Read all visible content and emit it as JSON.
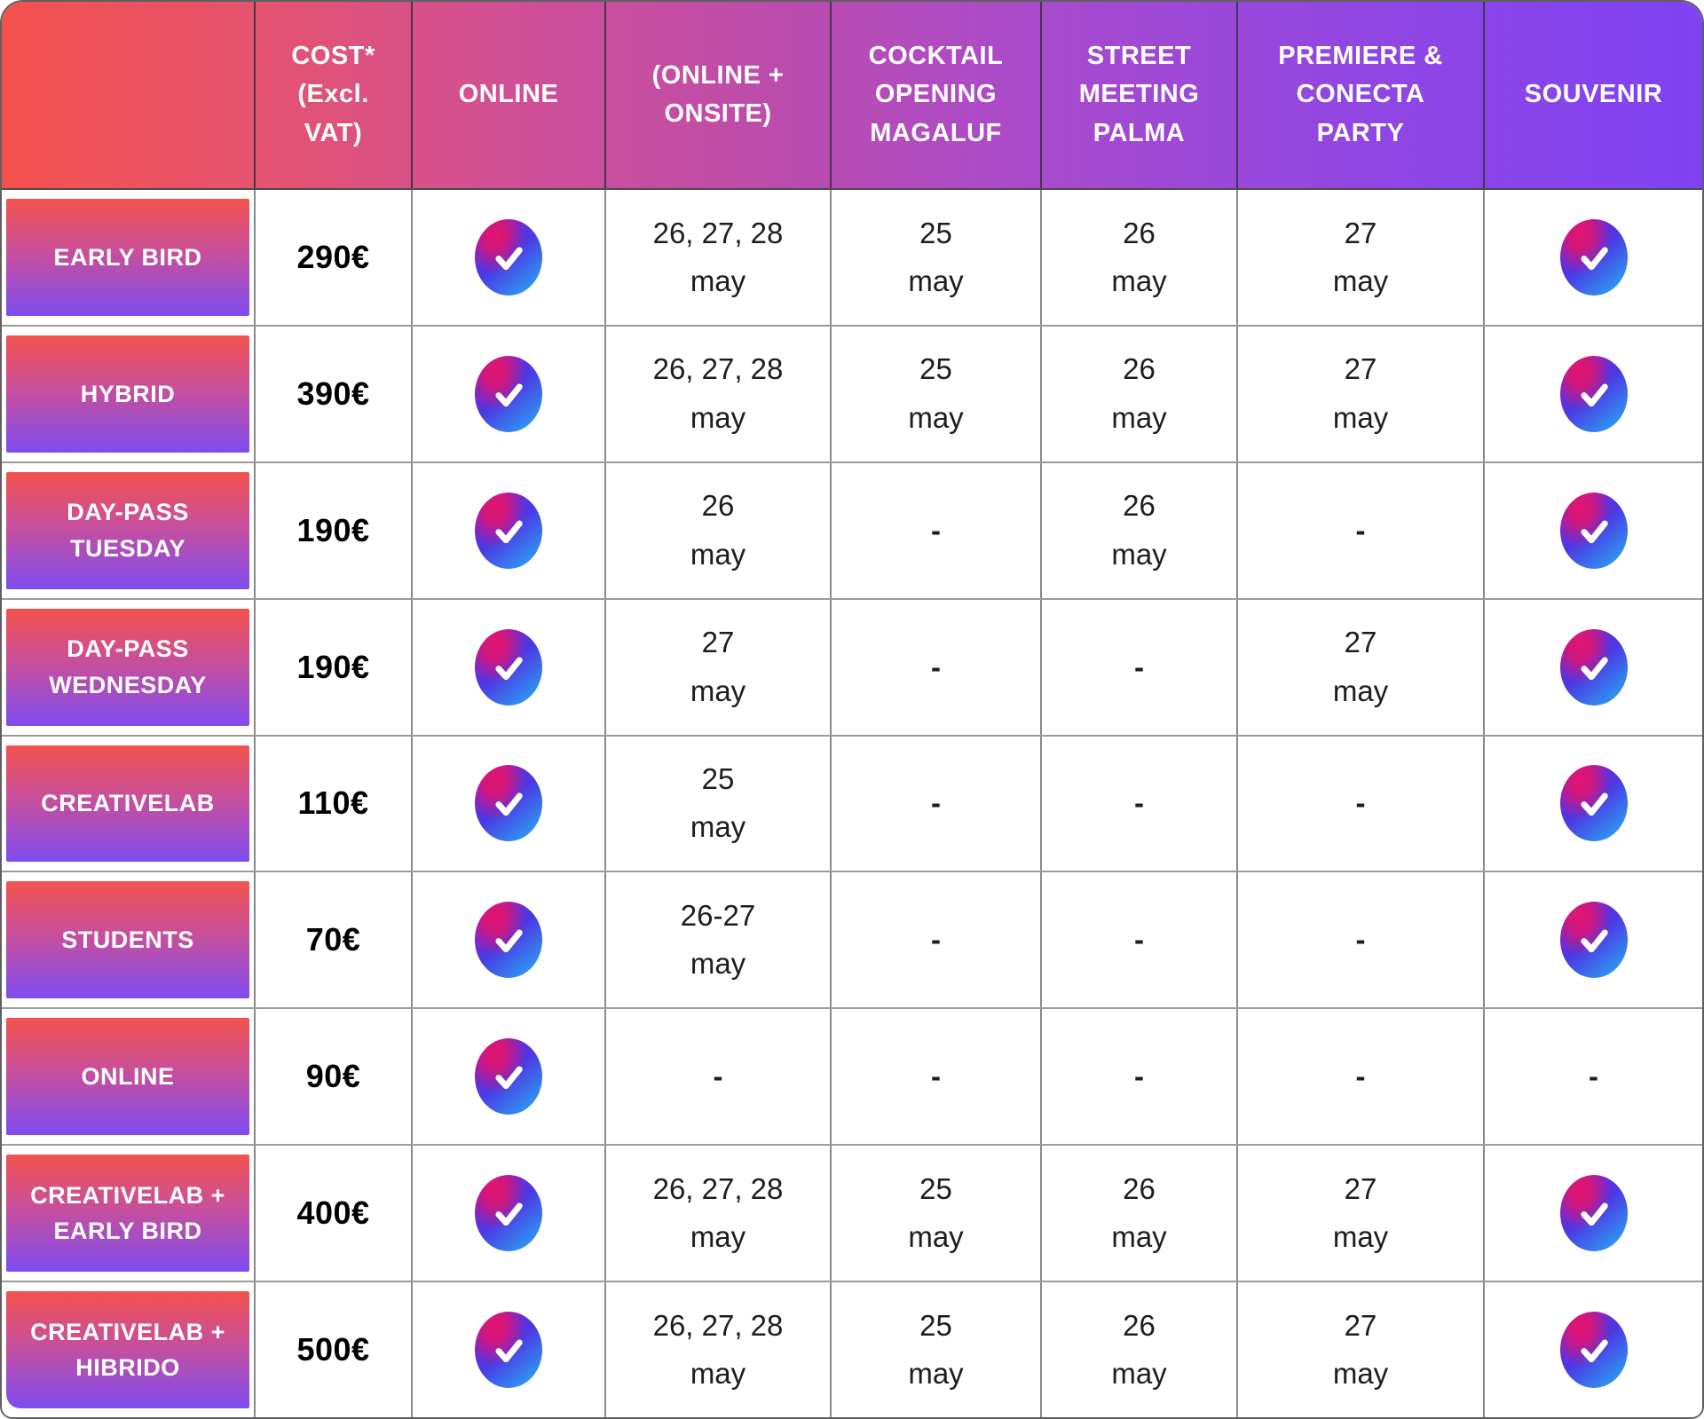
{
  "table": {
    "header": {
      "cells": [
        {
          "key": "plan",
          "label": ""
        },
        {
          "key": "cost",
          "label": "COST*\n(Excl.\nVAT)"
        },
        {
          "key": "online",
          "label": "ONLINE"
        },
        {
          "key": "online_onsite",
          "label": "(ONLINE +\nONSITE)"
        },
        {
          "key": "cocktail",
          "label": "COCKTAIL\nOPENING\nMAGALUF"
        },
        {
          "key": "street",
          "label": "STREET\nMEETING\nPALMA"
        },
        {
          "key": "premiere",
          "label": "PREMIERE &\nCONECTA\nPARTY"
        },
        {
          "key": "souvenir",
          "label": "SOUVENIR"
        }
      ]
    },
    "rows": [
      {
        "plan": "EARLY BIRD",
        "cost": "290€",
        "online": "CHECK",
        "online_onsite": "26, 27, 28\nmay",
        "cocktail": "25\nmay",
        "street": "26\nmay",
        "premiere": "27\nmay",
        "souvenir": "CHECK"
      },
      {
        "plan": "HYBRID",
        "cost": "390€",
        "online": "CHECK",
        "online_onsite": "26, 27, 28\nmay",
        "cocktail": "25\nmay",
        "street": "26\nmay",
        "premiere": "27\nmay",
        "souvenir": "CHECK"
      },
      {
        "plan": "DAY-PASS\nTUESDAY",
        "cost": "190€",
        "online": "CHECK",
        "online_onsite": "26\nmay",
        "cocktail": "-",
        "street": "26\nmay",
        "premiere": "-",
        "souvenir": "CHECK"
      },
      {
        "plan": "DAY-PASS\nWEDNESDAY",
        "cost": "190€",
        "online": "CHECK",
        "online_onsite": "27\nmay",
        "cocktail": "-",
        "street": "-",
        "premiere": "27\nmay",
        "souvenir": "CHECK"
      },
      {
        "plan": "CREATIVELAB",
        "cost": "110€",
        "online": "CHECK",
        "online_onsite": "25\nmay",
        "cocktail": "-",
        "street": "-",
        "premiere": "-",
        "souvenir": "CHECK"
      },
      {
        "plan": "STUDENTS",
        "cost": "70€",
        "online": "CHECK",
        "online_onsite": "26-27\nmay",
        "cocktail": "-",
        "street": "-",
        "premiere": "-",
        "souvenir": "CHECK"
      },
      {
        "plan": "ONLINE",
        "cost": "90€",
        "online": "CHECK",
        "online_onsite": "-",
        "cocktail": "-",
        "street": "-",
        "premiere": "-",
        "souvenir": "-"
      },
      {
        "plan": "CREATIVELAB +\nEARLY BIRD",
        "cost": "400€",
        "online": "CHECK",
        "online_onsite": "26, 27, 28\nmay",
        "cocktail": "25\nmay",
        "street": "26\nmay",
        "premiere": "27\nmay",
        "souvenir": "CHECK"
      },
      {
        "plan": "CREATIVELAB +\nHIBRIDO",
        "cost": "500€",
        "online": "CHECK",
        "online_onsite": "26, 27, 28\nmay",
        "cocktail": "25\nmay",
        "street": "26\nmay",
        "premiere": "27\nmay",
        "souvenir": "CHECK"
      }
    ]
  },
  "icons": {
    "check": {
      "name": "check-circle-icon",
      "meaning": "included"
    }
  },
  "colors": {
    "header_gradient_start": "#f4514c",
    "header_gradient_end": "#7f42f2",
    "chip_gradient_top": "#f4524d",
    "chip_gradient_mid": "#c74f9c",
    "chip_gradient_bottom": "#7e4cf0",
    "check_pink": "#e3156f",
    "check_purple": "#7d22d3",
    "check_blue": "#2b9cf4",
    "header_text": "#ffffff",
    "cell_text": "#1d1d1d",
    "grid_line": "#8a8a8a"
  },
  "chart_data": {
    "type": "table",
    "title": "Ticket pricing table",
    "columns": [
      "",
      "COST* (Excl. VAT)",
      "ONLINE",
      "(ONLINE + ONSITE)",
      "COCKTAIL OPENING MAGALUF",
      "STREET MEETING PALMA",
      "PREMIERE & CONECTA PARTY",
      "SOUVENIR"
    ],
    "rows": [
      [
        "EARLY BIRD",
        "290€",
        "✓",
        "26, 27, 28 may",
        "25 may",
        "26 may",
        "27 may",
        "✓"
      ],
      [
        "HYBRID",
        "390€",
        "✓",
        "26, 27, 28 may",
        "25 may",
        "26 may",
        "27 may",
        "✓"
      ],
      [
        "DAY-PASS TUESDAY",
        "190€",
        "✓",
        "26 may",
        "-",
        "26 may",
        "-",
        "✓"
      ],
      [
        "DAY-PASS WEDNESDAY",
        "190€",
        "✓",
        "27 may",
        "-",
        "-",
        "27 may",
        "✓"
      ],
      [
        "CREATIVELAB",
        "110€",
        "✓",
        "25 may",
        "-",
        "-",
        "-",
        "✓"
      ],
      [
        "STUDENTS",
        "70€",
        "✓",
        "26-27 may",
        "-",
        "-",
        "-",
        "✓"
      ],
      [
        "ONLINE",
        "90€",
        "✓",
        "-",
        "-",
        "-",
        "-",
        "-"
      ],
      [
        "CREATIVELAB + EARLY BIRD",
        "400€",
        "✓",
        "26, 27, 28 may",
        "25 may",
        "26 may",
        "27 may",
        "✓"
      ],
      [
        "CREATIVELAB + HIBRIDO",
        "500€",
        "✓",
        "26, 27, 28 may",
        "25 may",
        "26 may",
        "27 may",
        "✓"
      ]
    ]
  }
}
